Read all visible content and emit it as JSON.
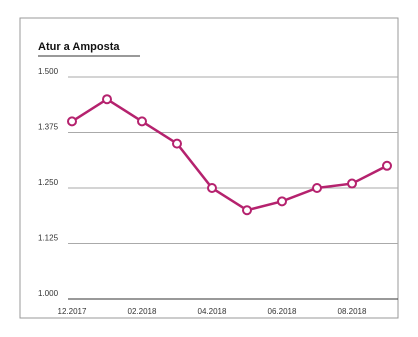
{
  "chart_data": {
    "type": "line",
    "title": "Atur a Amposta",
    "categories": [
      "12.2017",
      null,
      "02.2018",
      null,
      "04.2018",
      null,
      "06.2018",
      null,
      "08.2018",
      null
    ],
    "series": [
      {
        "name": "Atur",
        "color": "#b5226e",
        "values": [
          1400,
          1450,
          1400,
          1350,
          1250,
          1200,
          1220,
          1250,
          1260,
          1300
        ]
      }
    ],
    "ylim": [
      1000,
      1500
    ],
    "yticks": [
      {
        "value": 1000,
        "label": "1.000"
      },
      {
        "value": 1125,
        "label": "1.125"
      },
      {
        "value": 1250,
        "label": "1.250"
      },
      {
        "value": 1375,
        "label": "1.375"
      },
      {
        "value": 1500,
        "label": "1.500"
      }
    ],
    "grid": true
  }
}
